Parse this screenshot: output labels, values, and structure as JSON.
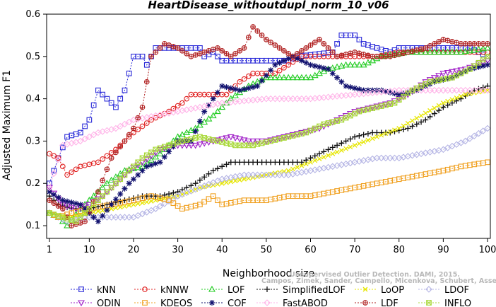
{
  "chart_data": {
    "type": "line",
    "title": "HeartDisease_withoutdupl_norm_10_v06",
    "xlabel": "Neighborhood size",
    "ylabel": "Adjusted Maximum F1",
    "xlim": [
      1,
      100
    ],
    "ylim": [
      0.07,
      0.6
    ],
    "xticks": [
      1,
      10,
      20,
      30,
      40,
      50,
      60,
      70,
      80,
      90,
      100
    ],
    "yticks": [
      0.1,
      0.2,
      0.3,
      0.4,
      0.5,
      0.6
    ],
    "ytick_labels": [
      "0.1",
      "0.2",
      "0.3",
      "0.4",
      "0.5",
      "0.6"
    ],
    "grid": false,
    "legend_position": "bottom",
    "credit": [
      "Unsupervised Outlier Detection. DAMI, 2015.",
      "Campos, Zimek, Sander, Campello, Micenkova, Schubert, Assent, Houle"
    ],
    "series": [
      {
        "name": "kNN",
        "color": "#2a2ad8",
        "marker": "square",
        "knots": [
          [
            1,
            0.2
          ],
          [
            3,
            0.26
          ],
          [
            5,
            0.31
          ],
          [
            8,
            0.32
          ],
          [
            10,
            0.35
          ],
          [
            12,
            0.42
          ],
          [
            14,
            0.4
          ],
          [
            16,
            0.38
          ],
          [
            18,
            0.42
          ],
          [
            20,
            0.5
          ],
          [
            22,
            0.5
          ],
          [
            23,
            0.48
          ],
          [
            25,
            0.52
          ],
          [
            35,
            0.52
          ],
          [
            36,
            0.5
          ],
          [
            38,
            0.51
          ],
          [
            40,
            0.49
          ],
          [
            55,
            0.49
          ],
          [
            57,
            0.5
          ],
          [
            65,
            0.51
          ],
          [
            67,
            0.55
          ],
          [
            70,
            0.55
          ],
          [
            72,
            0.53
          ],
          [
            78,
            0.51
          ],
          [
            80,
            0.52
          ],
          [
            96,
            0.52
          ],
          [
            100,
            0.5
          ]
        ]
      },
      {
        "name": "kNNW",
        "color": "#e02020",
        "marker": "circle",
        "knots": [
          [
            1,
            0.27
          ],
          [
            3,
            0.26
          ],
          [
            5,
            0.22
          ],
          [
            8,
            0.24
          ],
          [
            12,
            0.25
          ],
          [
            16,
            0.28
          ],
          [
            20,
            0.32
          ],
          [
            24,
            0.35
          ],
          [
            28,
            0.37
          ],
          [
            31,
            0.39
          ],
          [
            33,
            0.41
          ],
          [
            41,
            0.41
          ],
          [
            44,
            0.44
          ],
          [
            47,
            0.46
          ],
          [
            52,
            0.46
          ],
          [
            55,
            0.48
          ],
          [
            58,
            0.5
          ],
          [
            70,
            0.5
          ],
          [
            75,
            0.5
          ],
          [
            80,
            0.51
          ],
          [
            100,
            0.51
          ]
        ]
      },
      {
        "name": "LOF",
        "color": "#22cc22",
        "marker": "triangle-up",
        "knots": [
          [
            1,
            0.13
          ],
          [
            3,
            0.12
          ],
          [
            5,
            0.1
          ],
          [
            8,
            0.14
          ],
          [
            11,
            0.17
          ],
          [
            14,
            0.2
          ],
          [
            18,
            0.23
          ],
          [
            22,
            0.24
          ],
          [
            26,
            0.27
          ],
          [
            30,
            0.31
          ],
          [
            34,
            0.33
          ],
          [
            38,
            0.36
          ],
          [
            42,
            0.4
          ],
          [
            46,
            0.43
          ],
          [
            50,
            0.45
          ],
          [
            54,
            0.45
          ],
          [
            60,
            0.45
          ],
          [
            64,
            0.47
          ],
          [
            68,
            0.48
          ],
          [
            72,
            0.48
          ],
          [
            76,
            0.5
          ],
          [
            82,
            0.51
          ],
          [
            88,
            0.51
          ],
          [
            94,
            0.51
          ],
          [
            100,
            0.52
          ]
        ]
      },
      {
        "name": "SimplifiedLOF",
        "color": "#111111",
        "marker": "plus",
        "knots": [
          [
            1,
            0.17
          ],
          [
            3,
            0.15
          ],
          [
            6,
            0.14
          ],
          [
            10,
            0.14
          ],
          [
            14,
            0.15
          ],
          [
            18,
            0.16
          ],
          [
            22,
            0.17
          ],
          [
            26,
            0.17
          ],
          [
            30,
            0.18
          ],
          [
            34,
            0.2
          ],
          [
            38,
            0.23
          ],
          [
            42,
            0.25
          ],
          [
            46,
            0.25
          ],
          [
            50,
            0.25
          ],
          [
            54,
            0.25
          ],
          [
            58,
            0.25
          ],
          [
            62,
            0.27
          ],
          [
            66,
            0.29
          ],
          [
            70,
            0.31
          ],
          [
            74,
            0.32
          ],
          [
            78,
            0.32
          ],
          [
            82,
            0.33
          ],
          [
            86,
            0.35
          ],
          [
            90,
            0.38
          ],
          [
            94,
            0.4
          ],
          [
            97,
            0.42
          ],
          [
            100,
            0.43
          ]
        ]
      },
      {
        "name": "LoOP",
        "color": "#e6e600",
        "marker": "x",
        "knots": [
          [
            1,
            0.13
          ],
          [
            5,
            0.12
          ],
          [
            10,
            0.13
          ],
          [
            15,
            0.14
          ],
          [
            20,
            0.15
          ],
          [
            25,
            0.16
          ],
          [
            30,
            0.17
          ],
          [
            35,
            0.19
          ],
          [
            40,
            0.2
          ],
          [
            45,
            0.21
          ],
          [
            50,
            0.22
          ],
          [
            55,
            0.23
          ],
          [
            60,
            0.25
          ],
          [
            65,
            0.27
          ],
          [
            70,
            0.29
          ],
          [
            75,
            0.31
          ],
          [
            80,
            0.33
          ],
          [
            85,
            0.36
          ],
          [
            90,
            0.39
          ],
          [
            95,
            0.41
          ],
          [
            100,
            0.42
          ]
        ]
      },
      {
        "name": "LDOF",
        "color": "#b4b4e4",
        "marker": "diamond",
        "knots": [
          [
            1,
            0.13
          ],
          [
            5,
            0.11
          ],
          [
            10,
            0.12
          ],
          [
            15,
            0.12
          ],
          [
            20,
            0.12
          ],
          [
            25,
            0.14
          ],
          [
            30,
            0.17
          ],
          [
            35,
            0.19
          ],
          [
            40,
            0.21
          ],
          [
            45,
            0.22
          ],
          [
            50,
            0.22
          ],
          [
            55,
            0.22
          ],
          [
            60,
            0.23
          ],
          [
            65,
            0.24
          ],
          [
            70,
            0.25
          ],
          [
            75,
            0.26
          ],
          [
            80,
            0.26
          ],
          [
            85,
            0.27
          ],
          [
            90,
            0.28
          ],
          [
            95,
            0.3
          ],
          [
            100,
            0.33
          ]
        ]
      },
      {
        "name": "ODIN",
        "color": "#a020c8",
        "marker": "triangle-down",
        "knots": [
          [
            1,
            0.19
          ],
          [
            4,
            0.15
          ],
          [
            7,
            0.14
          ],
          [
            10,
            0.15
          ],
          [
            13,
            0.17
          ],
          [
            16,
            0.2
          ],
          [
            19,
            0.23
          ],
          [
            22,
            0.25
          ],
          [
            26,
            0.28
          ],
          [
            30,
            0.29
          ],
          [
            34,
            0.29
          ],
          [
            38,
            0.3
          ],
          [
            42,
            0.31
          ],
          [
            46,
            0.3
          ],
          [
            50,
            0.3
          ],
          [
            54,
            0.31
          ],
          [
            58,
            0.32
          ],
          [
            62,
            0.33
          ],
          [
            66,
            0.35
          ],
          [
            70,
            0.37
          ],
          [
            74,
            0.38
          ],
          [
            78,
            0.39
          ],
          [
            82,
            0.41
          ],
          [
            86,
            0.44
          ],
          [
            90,
            0.46
          ],
          [
            95,
            0.47
          ],
          [
            100,
            0.49
          ]
        ]
      },
      {
        "name": "KDEOS",
        "color": "#f0a020",
        "marker": "square",
        "knots": [
          [
            1,
            0.13
          ],
          [
            3,
            0.12
          ],
          [
            6,
            0.13
          ],
          [
            10,
            0.14
          ],
          [
            15,
            0.15
          ],
          [
            20,
            0.16
          ],
          [
            24,
            0.17
          ],
          [
            28,
            0.16
          ],
          [
            31,
            0.14
          ],
          [
            35,
            0.15
          ],
          [
            38,
            0.17
          ],
          [
            40,
            0.15
          ],
          [
            45,
            0.16
          ],
          [
            50,
            0.16
          ],
          [
            55,
            0.17
          ],
          [
            60,
            0.17
          ],
          [
            65,
            0.18
          ],
          [
            70,
            0.19
          ],
          [
            75,
            0.2
          ],
          [
            80,
            0.21
          ],
          [
            85,
            0.22
          ],
          [
            90,
            0.23
          ],
          [
            94,
            0.24
          ],
          [
            100,
            0.25
          ]
        ]
      },
      {
        "name": "COF",
        "color": "#10106e",
        "marker": "star",
        "knots": [
          [
            1,
            0.18
          ],
          [
            4,
            0.16
          ],
          [
            8,
            0.15
          ],
          [
            12,
            0.11
          ],
          [
            15,
            0.15
          ],
          [
            19,
            0.2
          ],
          [
            23,
            0.24
          ],
          [
            26,
            0.25
          ],
          [
            30,
            0.3
          ],
          [
            33,
            0.3
          ],
          [
            36,
            0.37
          ],
          [
            40,
            0.43
          ],
          [
            44,
            0.42
          ],
          [
            48,
            0.43
          ],
          [
            52,
            0.48
          ],
          [
            56,
            0.5
          ],
          [
            60,
            0.48
          ],
          [
            64,
            0.47
          ],
          [
            68,
            0.43
          ],
          [
            72,
            0.42
          ],
          [
            76,
            0.42
          ],
          [
            80,
            0.41
          ],
          [
            84,
            0.42
          ],
          [
            88,
            0.44
          ],
          [
            92,
            0.45
          ],
          [
            96,
            0.47
          ],
          [
            100,
            0.48
          ]
        ]
      },
      {
        "name": "FastABOD",
        "color": "#ffb4e8",
        "marker": "diamond",
        "knots": [
          [
            1,
            0.19
          ],
          [
            4,
            0.29
          ],
          [
            8,
            0.3
          ],
          [
            12,
            0.32
          ],
          [
            16,
            0.33
          ],
          [
            20,
            0.35
          ],
          [
            25,
            0.36
          ],
          [
            30,
            0.37
          ],
          [
            35,
            0.38
          ],
          [
            40,
            0.39
          ],
          [
            50,
            0.4
          ],
          [
            60,
            0.4
          ],
          [
            70,
            0.41
          ],
          [
            80,
            0.42
          ],
          [
            90,
            0.42
          ],
          [
            100,
            0.42
          ]
        ]
      },
      {
        "name": "LDF",
        "color": "#b02020",
        "marker": "circle-plus",
        "knots": [
          [
            1,
            0.16
          ],
          [
            4,
            0.14
          ],
          [
            6,
            0.1
          ],
          [
            9,
            0.11
          ],
          [
            12,
            0.18
          ],
          [
            15,
            0.26
          ],
          [
            18,
            0.3
          ],
          [
            20,
            0.33
          ],
          [
            22,
            0.38
          ],
          [
            24,
            0.5
          ],
          [
            27,
            0.53
          ],
          [
            30,
            0.52
          ],
          [
            33,
            0.5
          ],
          [
            36,
            0.51
          ],
          [
            39,
            0.52
          ],
          [
            42,
            0.5
          ],
          [
            45,
            0.52
          ],
          [
            47,
            0.57
          ],
          [
            50,
            0.54
          ],
          [
            53,
            0.52
          ],
          [
            56,
            0.5
          ],
          [
            59,
            0.52
          ],
          [
            62,
            0.54
          ],
          [
            66,
            0.5
          ],
          [
            70,
            0.51
          ],
          [
            74,
            0.5
          ],
          [
            78,
            0.5
          ],
          [
            82,
            0.51
          ],
          [
            86,
            0.52
          ],
          [
            90,
            0.54
          ],
          [
            94,
            0.53
          ],
          [
            100,
            0.53
          ]
        ]
      },
      {
        "name": "INFLO",
        "color": "#a8d838",
        "marker": "hourglass",
        "knots": [
          [
            1,
            0.13
          ],
          [
            4,
            0.12
          ],
          [
            7,
            0.11
          ],
          [
            10,
            0.14
          ],
          [
            13,
            0.17
          ],
          [
            16,
            0.2
          ],
          [
            19,
            0.23
          ],
          [
            22,
            0.26
          ],
          [
            25,
            0.28
          ],
          [
            28,
            0.29
          ],
          [
            31,
            0.3
          ],
          [
            35,
            0.31
          ],
          [
            39,
            0.3
          ],
          [
            43,
            0.29
          ],
          [
            47,
            0.29
          ],
          [
            51,
            0.3
          ],
          [
            55,
            0.31
          ],
          [
            59,
            0.32
          ],
          [
            63,
            0.34
          ],
          [
            67,
            0.35
          ],
          [
            71,
            0.37
          ],
          [
            75,
            0.38
          ],
          [
            79,
            0.39
          ],
          [
            83,
            0.42
          ],
          [
            87,
            0.44
          ],
          [
            92,
            0.45
          ],
          [
            96,
            0.47
          ],
          [
            100,
            0.5
          ]
        ]
      }
    ]
  }
}
